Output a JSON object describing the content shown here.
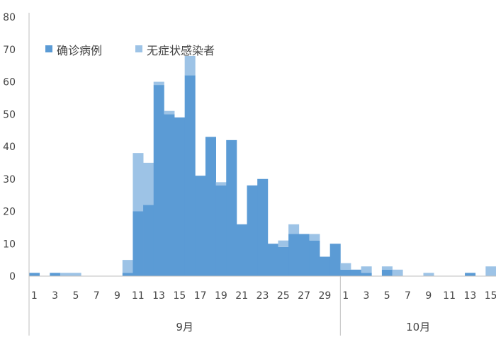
{
  "chart_data": {
    "type": "bar",
    "stacked": true,
    "ylim": [
      0,
      80
    ],
    "yticks": [
      "0",
      "10",
      "20",
      "30",
      "40",
      "50",
      "60",
      "70",
      "80"
    ],
    "x": [
      "9/1",
      "9/2",
      "9/3",
      "9/4",
      "9/5",
      "9/6",
      "9/7",
      "9/8",
      "9/9",
      "9/10",
      "9/11",
      "9/12",
      "9/13",
      "9/14",
      "9/15",
      "9/16",
      "9/17",
      "9/18",
      "9/19",
      "9/20",
      "9/21",
      "9/22",
      "9/23",
      "9/24",
      "9/25",
      "9/26",
      "9/27",
      "9/28",
      "9/29",
      "9/30",
      "10/1",
      "10/2",
      "10/3",
      "10/4",
      "10/5",
      "10/6",
      "10/7",
      "10/8",
      "10/9",
      "10/10",
      "10/11",
      "10/12",
      "10/13",
      "10/14",
      "10/15"
    ],
    "xtick_labels_sep": [
      "1",
      "3",
      "5",
      "7",
      "9",
      "11",
      "13",
      "15",
      "17",
      "19",
      "21",
      "23",
      "25",
      "27",
      "29"
    ],
    "xtick_labels_oct": [
      "1",
      "3",
      "5",
      "7",
      "9",
      "11",
      "13",
      "15"
    ],
    "month_labels": [
      "9月",
      "10月"
    ],
    "series": [
      {
        "name": "确诊病例",
        "color": "#5B9BD5",
        "values": [
          1,
          0,
          1,
          0,
          0,
          0,
          0,
          0,
          0,
          1,
          20,
          22,
          59,
          50,
          49,
          62,
          31,
          43,
          28,
          42,
          16,
          28,
          30,
          10,
          9,
          13,
          13,
          11,
          6,
          10,
          2,
          2,
          1,
          0,
          2,
          0,
          0,
          0,
          0,
          0,
          0,
          0,
          1,
          0,
          0
        ]
      },
      {
        "name": "无症状感染者",
        "color": "#9DC3E6",
        "values": [
          0,
          0,
          0,
          1,
          1,
          0,
          0,
          0,
          0,
          4,
          18,
          13,
          1,
          1,
          0,
          6,
          0,
          0,
          1,
          0,
          0,
          0,
          0,
          0,
          2,
          3,
          0,
          2,
          0,
          0,
          2,
          0,
          2,
          0,
          1,
          2,
          0,
          0,
          1,
          0,
          0,
          0,
          0,
          0,
          3
        ]
      }
    ],
    "grid": false,
    "legend_position": "top-left"
  }
}
